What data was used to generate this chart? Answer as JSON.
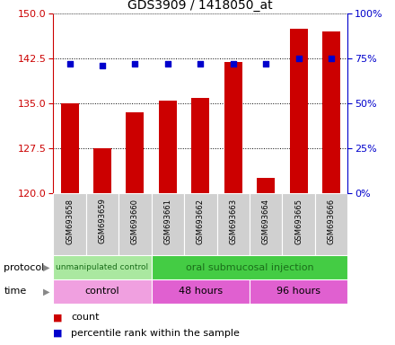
{
  "title": "GDS3909 / 1418050_at",
  "samples": [
    "GSM693658",
    "GSM693659",
    "GSM693660",
    "GSM693661",
    "GSM693662",
    "GSM693663",
    "GSM693664",
    "GSM693665",
    "GSM693666"
  ],
  "count_values": [
    135.0,
    127.5,
    133.5,
    135.5,
    136.0,
    142.0,
    122.5,
    147.5,
    147.0
  ],
  "percentile_values": [
    72,
    71,
    72,
    72,
    72,
    72,
    72,
    75,
    75
  ],
  "ylim_left": [
    120,
    150
  ],
  "ylim_right": [
    0,
    100
  ],
  "yticks_left": [
    120,
    127.5,
    135,
    142.5,
    150
  ],
  "yticks_right": [
    0,
    25,
    50,
    75,
    100
  ],
  "protocol_groups": [
    {
      "label": "unmanipulated control",
      "start": 0,
      "end": 3,
      "color": "#aae8a0"
    },
    {
      "label": "oral submucosal injection",
      "start": 3,
      "end": 9,
      "color": "#44cc44"
    }
  ],
  "time_groups": [
    {
      "label": "control",
      "start": 0,
      "end": 3,
      "color": "#f0a0e0"
    },
    {
      "label": "48 hours",
      "start": 3,
      "end": 6,
      "color": "#e060d0"
    },
    {
      "label": "96 hours",
      "start": 6,
      "end": 9,
      "color": "#e060d0"
    }
  ],
  "bar_color": "#CC0000",
  "dot_color": "#0000CC",
  "grid_color": "#000000",
  "left_axis_color": "#CC0000",
  "right_axis_color": "#0000CC",
  "protocol_label": "protocol",
  "time_label": "time",
  "legend_count": "count",
  "legend_pct": "percentile rank within the sample",
  "bg_color": "#ffffff",
  "sample_bg": "#d0d0d0"
}
